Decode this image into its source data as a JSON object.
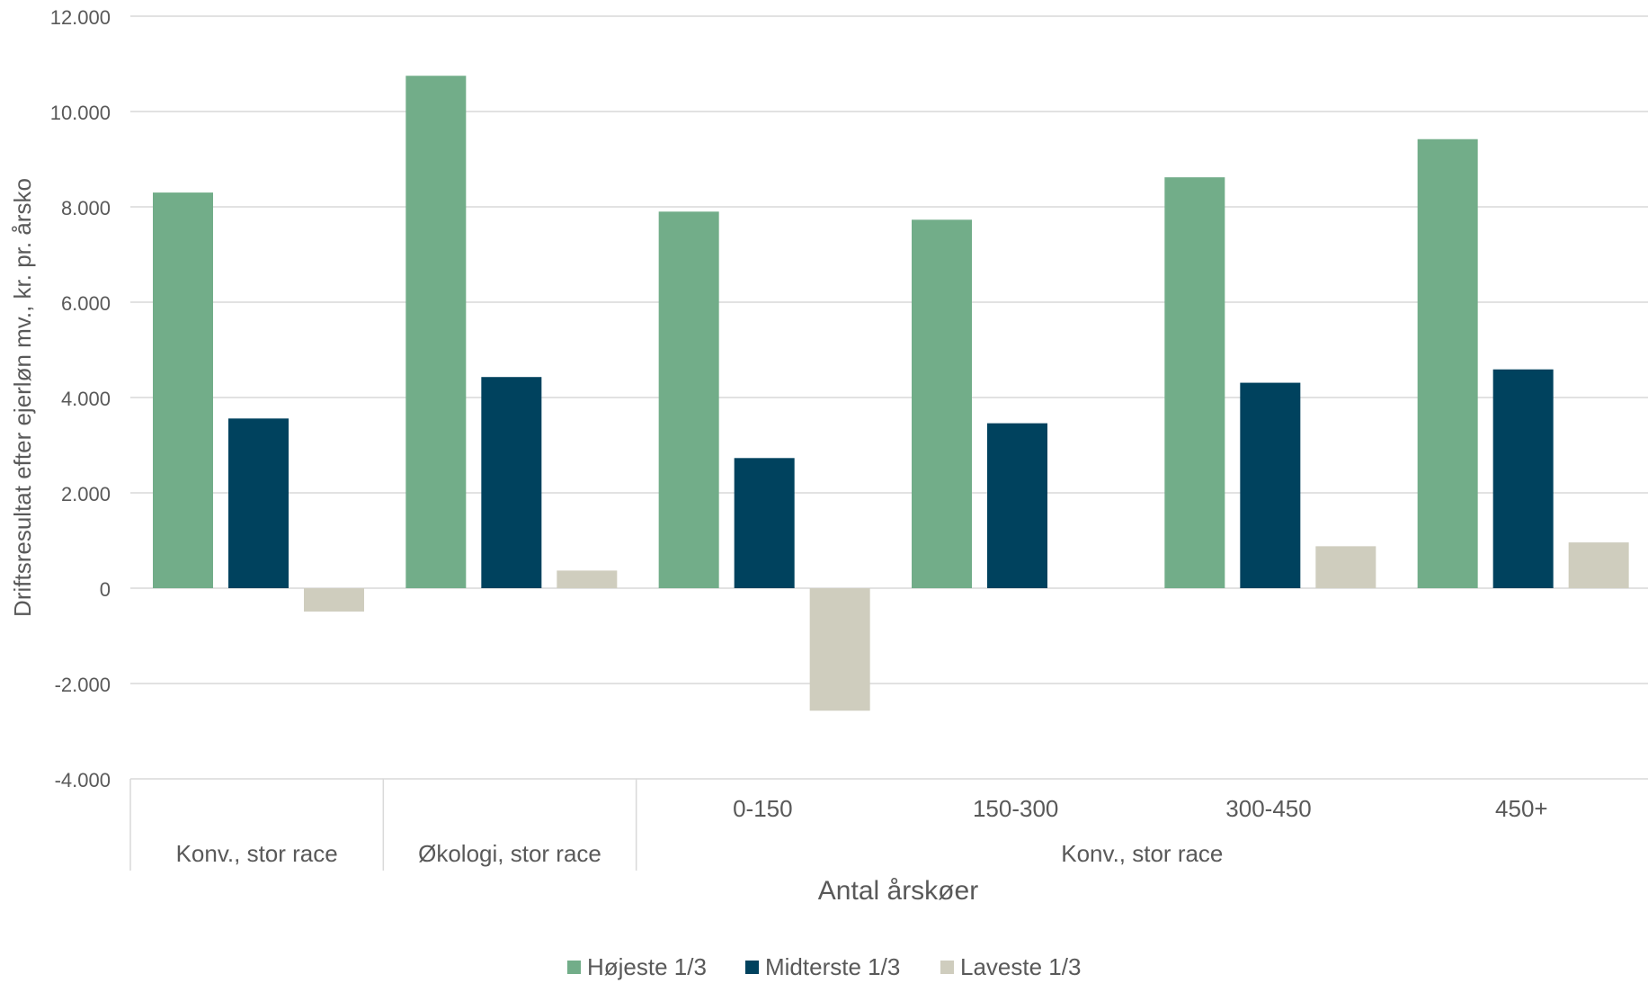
{
  "chart_data": {
    "type": "bar",
    "xlabel": "Antal årskøer",
    "ylabel": "Driftsresultat efter ejerløn mv., kr. pr. årsko",
    "ylim": [
      -4000,
      12000
    ],
    "y_ticks": [
      {
        "value": 12000,
        "label": "12.000"
      },
      {
        "value": 10000,
        "label": "10.000"
      },
      {
        "value": 8000,
        "label": "8.000"
      },
      {
        "value": 6000,
        "label": "6.000"
      },
      {
        "value": 4000,
        "label": "4.000"
      },
      {
        "value": 2000,
        "label": "2.000"
      },
      {
        "value": 0,
        "label": "0"
      },
      {
        "value": -2000,
        "label": "-2.000"
      },
      {
        "value": -4000,
        "label": "-4.000"
      }
    ],
    "grid": true,
    "legend_position": "bottom",
    "categories": [
      {
        "sub": "",
        "group": "Konv., stor race"
      },
      {
        "sub": "",
        "group": "Økologi, stor race"
      },
      {
        "sub": "0-150",
        "group": "Konv., stor race"
      },
      {
        "sub": "150-300",
        "group": "Konv., stor race"
      },
      {
        "sub": "300-450",
        "group": "Konv., stor race"
      },
      {
        "sub": "450+",
        "group": "Konv., stor race"
      }
    ],
    "group_labels": [
      {
        "label": "Konv., stor race",
        "span": [
          0,
          0
        ]
      },
      {
        "label": "Økologi, stor race",
        "span": [
          1,
          1
        ]
      },
      {
        "label": "Konv., stor race",
        "span": [
          2,
          5
        ]
      }
    ],
    "series": [
      {
        "name": "Højeste 1/3",
        "color": "#72AD89",
        "values": [
          8300,
          10750,
          7900,
          7730,
          8620,
          9420
        ]
      },
      {
        "name": "Midterste 1/3",
        "color": "#00425E",
        "values": [
          3560,
          4430,
          2730,
          3460,
          4310,
          4590
        ]
      },
      {
        "name": "Laveste 1/3",
        "color": "#CFCDBE",
        "values": [
          -490,
          370,
          -2570,
          0,
          880,
          960
        ]
      }
    ]
  }
}
